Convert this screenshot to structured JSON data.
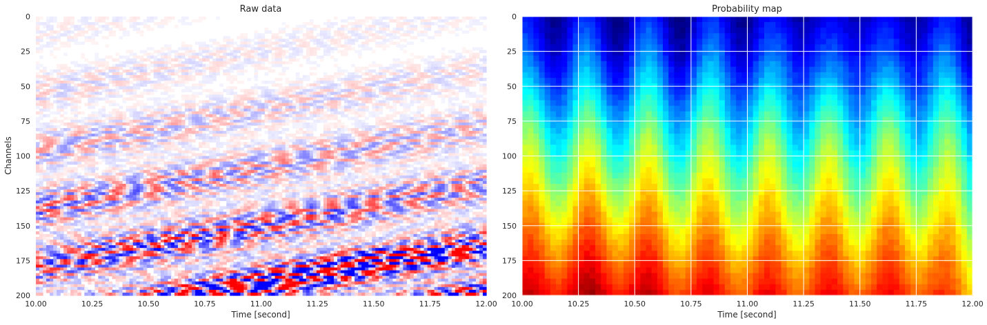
{
  "chart_data": [
    {
      "type": "heatmap",
      "title": "Raw data",
      "xlabel": "Time [second]",
      "ylabel": "Channels",
      "xlim": [
        10.0,
        12.0
      ],
      "ylim": [
        200,
        0
      ],
      "x_ticks": [
        "10.00",
        "10.25",
        "10.50",
        "10.75",
        "11.00",
        "11.25",
        "11.50",
        "11.75",
        "12.00"
      ],
      "y_ticks": [
        "0",
        "25",
        "50",
        "75",
        "100",
        "125",
        "150",
        "175",
        "200"
      ],
      "colormap": "bwr",
      "grid": false
    },
    {
      "type": "heatmap",
      "title": "Probability map",
      "xlabel": "Time [second]",
      "ylabel": "",
      "xlim": [
        10.0,
        12.0
      ],
      "ylim": [
        200,
        0
      ],
      "x_ticks": [
        "10.00",
        "10.25",
        "10.50",
        "10.75",
        "11.00",
        "11.25",
        "11.50",
        "11.75",
        "12.00"
      ],
      "y_ticks": [
        "0",
        "25",
        "50",
        "75",
        "100",
        "125",
        "150",
        "175",
        "200"
      ],
      "colormap": "jet",
      "grid": true
    }
  ]
}
